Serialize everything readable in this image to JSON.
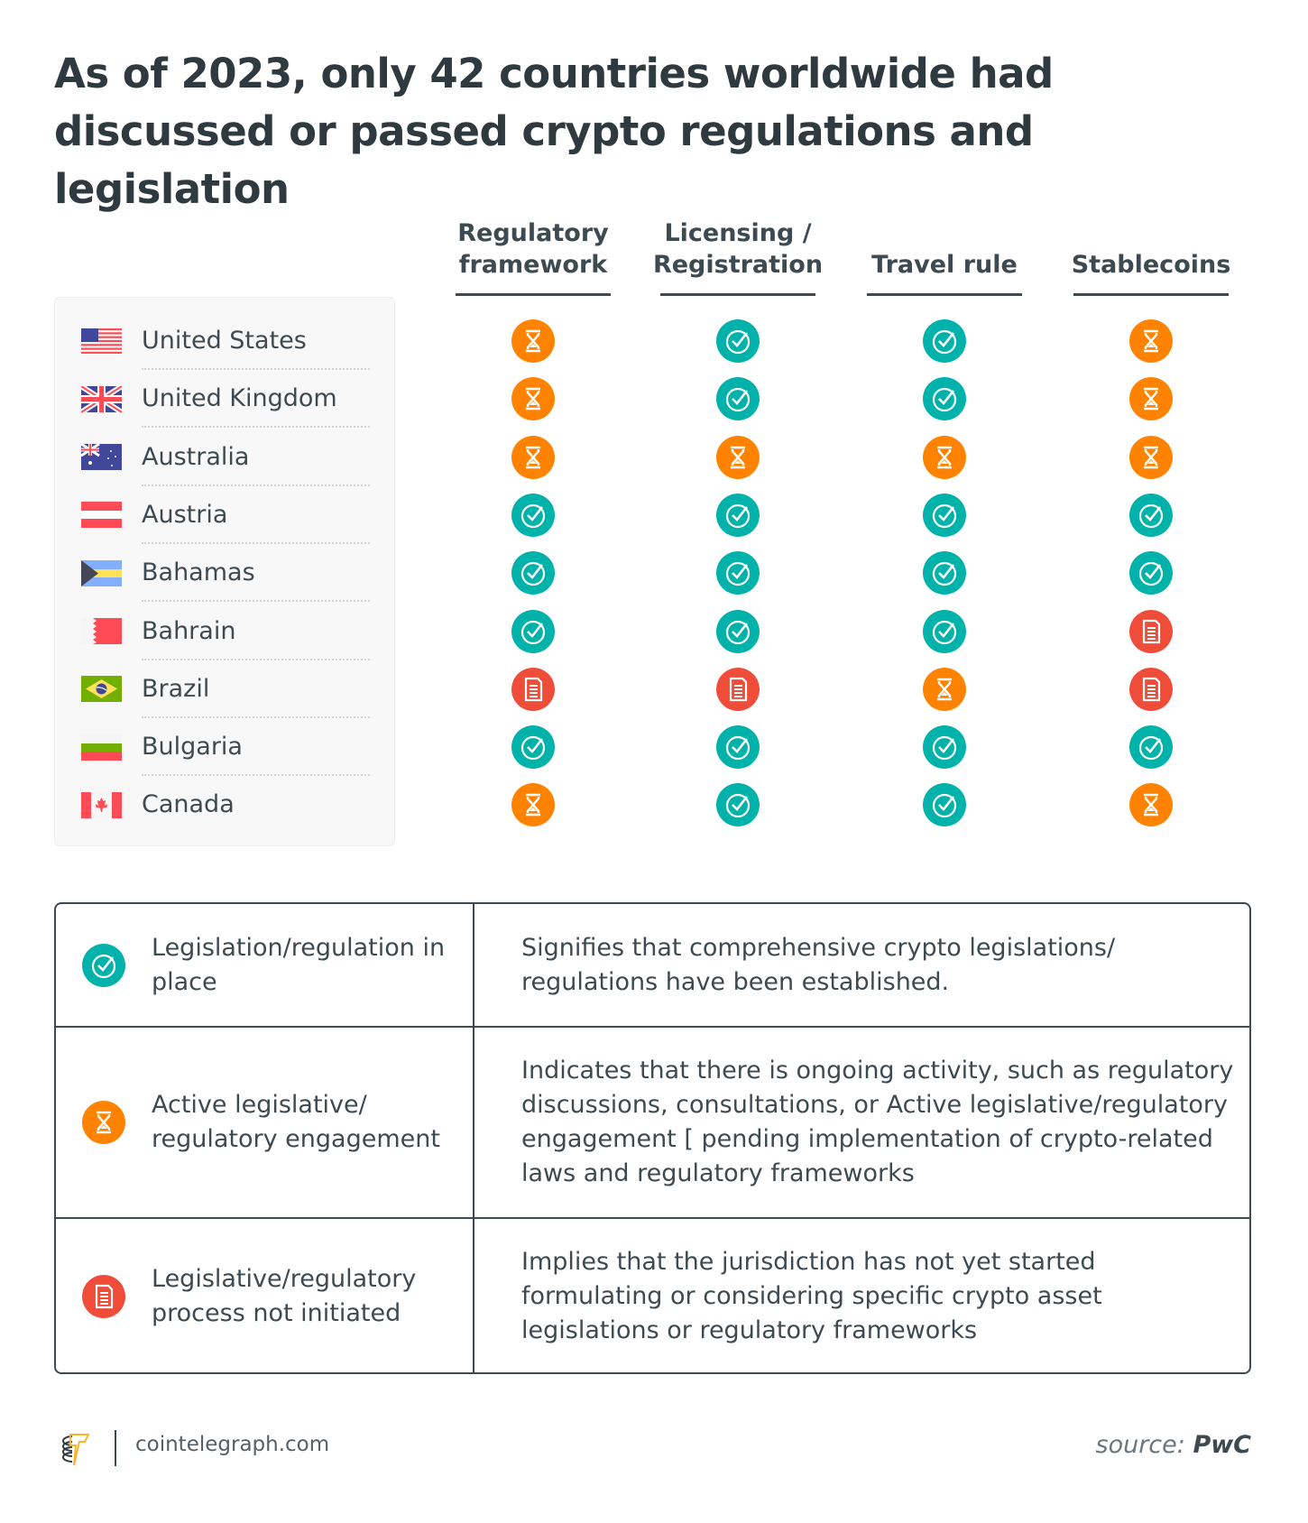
{
  "title": "As of  2023, only 42 countries worldwide had discussed or passed crypto regulations and legislation",
  "columns": [
    "Regulatory\nframework",
    "Licensing /\nRegistration",
    "Travel rule",
    "Stablecoins"
  ],
  "colors": {
    "in_place": "#00b2a9",
    "active": "#ff8300",
    "not_initiated": "#ef4c3a",
    "text": "#3d4a52"
  },
  "rows": [
    {
      "country": "United States",
      "flag": "us-flag",
      "status": [
        "active",
        "in_place",
        "in_place",
        "active"
      ]
    },
    {
      "country": "United Kingdom",
      "flag": "uk-flag",
      "status": [
        "active",
        "in_place",
        "in_place",
        "active"
      ]
    },
    {
      "country": "Australia",
      "flag": "australia-flag",
      "status": [
        "active",
        "active",
        "active",
        "active"
      ]
    },
    {
      "country": "Austria",
      "flag": "austria-flag",
      "status": [
        "in_place",
        "in_place",
        "in_place",
        "in_place"
      ]
    },
    {
      "country": "Bahamas",
      "flag": "bahamas-flag",
      "status": [
        "in_place",
        "in_place",
        "in_place",
        "in_place"
      ]
    },
    {
      "country": "Bahrain",
      "flag": "bahrain-flag",
      "status": [
        "in_place",
        "in_place",
        "in_place",
        "not_initiated"
      ]
    },
    {
      "country": "Brazil",
      "flag": "brazil-flag",
      "status": [
        "not_initiated",
        "not_initiated",
        "active",
        "not_initiated"
      ]
    },
    {
      "country": "Bulgaria",
      "flag": "bulgaria-flag",
      "status": [
        "in_place",
        "in_place",
        "in_place",
        "in_place"
      ]
    },
    {
      "country": "Canada",
      "flag": "canada-flag",
      "status": [
        "active",
        "in_place",
        "in_place",
        "active"
      ]
    }
  ],
  "legend": [
    {
      "key": "in_place",
      "icon": "check-icon",
      "label": "Legislation/regulation in place",
      "description": "Signifies that comprehensive crypto legislations/ regulations have been established."
    },
    {
      "key": "active",
      "icon": "hourglass-icon",
      "label": "Active legislative/ regulatory engagement",
      "description": "Indicates that there is ongoing activity, such as regulatory discussions, consultations, or Active legislative/regulatory engagement [ pending implementation of crypto-related laws and regulatory frameworks"
    },
    {
      "key": "not_initiated",
      "icon": "document-icon",
      "label": "Legislative/regulatory process not initiated",
      "description": "Implies that the jurisdiction has not yet started formulating or considering specific crypto asset legislations or regulatory frameworks"
    }
  ],
  "footer": {
    "site": "cointelegraph.com",
    "source_prefix": "source:",
    "source_name": "PwC"
  }
}
